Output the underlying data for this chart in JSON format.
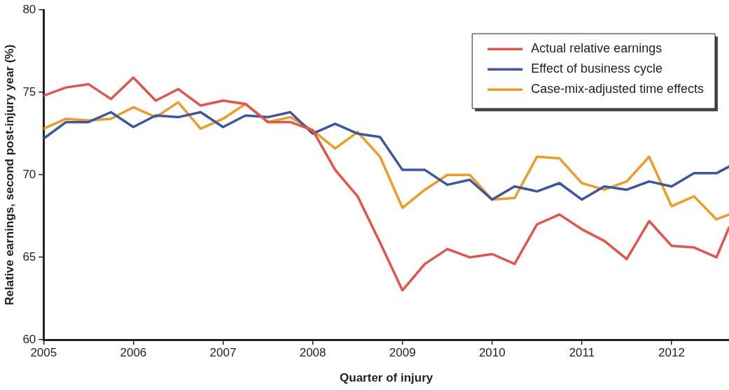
{
  "chart_data": {
    "type": "line",
    "xlabel": "Quarter of injury",
    "ylabel": "Relative earnings, second post-injury year (%)",
    "x": [
      2005,
      2005.25,
      2005.5,
      2005.75,
      2006,
      2006.25,
      2006.5,
      2006.75,
      2007,
      2007.25,
      2007.5,
      2007.75,
      2008,
      2008.25,
      2008.5,
      2008.75,
      2009,
      2009.25,
      2009.5,
      2009.75,
      2010,
      2010.25,
      2010.5,
      2010.75,
      2011,
      2011.25,
      2011.5,
      2011.75,
      2012,
      2012.25,
      2012.5,
      2012.64
    ],
    "series": [
      {
        "name": "Actual relative earnings",
        "color": "#e5534b",
        "values": [
          74.8,
          75.3,
          75.5,
          74.6,
          75.9,
          74.5,
          75.2,
          74.2,
          74.5,
          74.3,
          73.2,
          73.2,
          72.7,
          70.3,
          68.7,
          65.9,
          63.0,
          64.6,
          65.5,
          65.0,
          65.2,
          64.6,
          67.0,
          67.6,
          66.7,
          66.0,
          64.9,
          67.2,
          65.7,
          65.6,
          65.0,
          66.8
        ]
      },
      {
        "name": "Effect of business cycle",
        "color": "#3a56a5",
        "values": [
          72.2,
          73.2,
          73.2,
          73.8,
          72.9,
          73.6,
          73.5,
          73.8,
          72.9,
          73.6,
          73.5,
          73.8,
          72.5,
          73.1,
          72.5,
          72.3,
          70.3,
          70.3,
          69.4,
          69.7,
          68.5,
          69.3,
          69.0,
          69.5,
          68.5,
          69.3,
          69.1,
          69.6,
          69.3,
          70.1,
          70.1,
          70.5
        ]
      },
      {
        "name": "Case-mix-adjusted time effects",
        "color": "#f09c22",
        "values": [
          72.8,
          73.4,
          73.3,
          73.4,
          74.1,
          73.5,
          74.4,
          72.8,
          73.4,
          74.3,
          73.2,
          73.5,
          72.7,
          71.6,
          72.6,
          71.1,
          68.0,
          69.1,
          70.0,
          70.0,
          68.5,
          68.6,
          71.1,
          71.0,
          69.5,
          69.1,
          69.6,
          71.1,
          68.1,
          68.7,
          67.3,
          67.6
        ]
      }
    ],
    "xlim": [
      2005,
      2012.64
    ],
    "xticks": [
      2005,
      2006,
      2007,
      2008,
      2009,
      2010,
      2011,
      2012
    ],
    "ylim": [
      60,
      80
    ],
    "yticks": [
      60,
      65,
      70,
      75,
      80
    ],
    "grid": false,
    "legend": "top right",
    "marker": "none",
    "line_style": "solid"
  }
}
